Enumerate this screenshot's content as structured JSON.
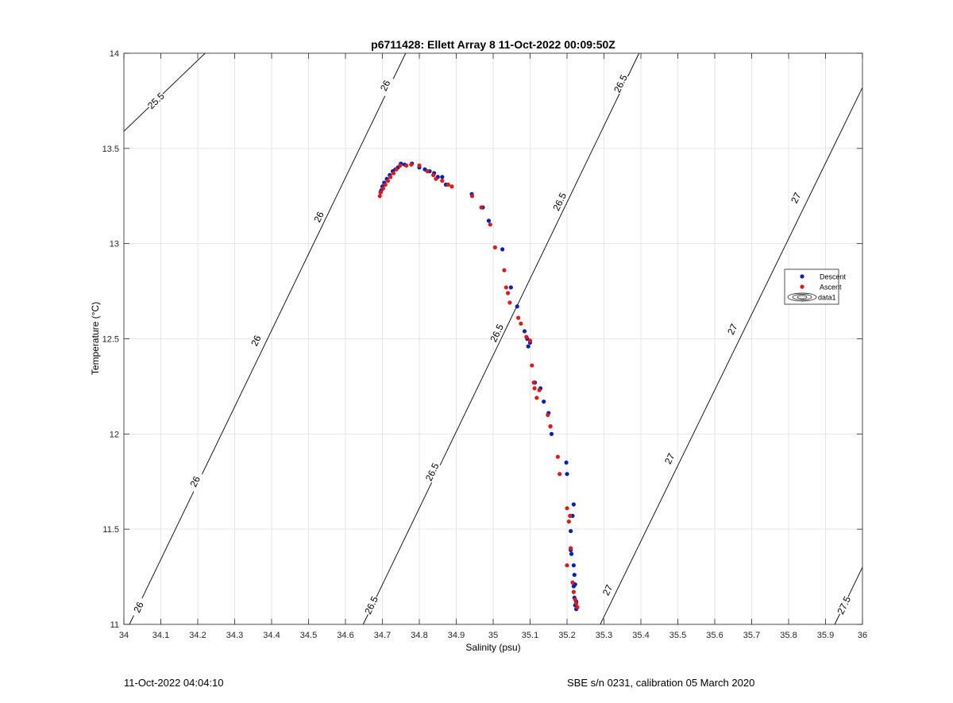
{
  "chart_data": {
    "type": "scatter",
    "title": "p6711428: Ellett Array 8 11-Oct-2022 00:09:50Z",
    "xlabel": "Salinity (psu)",
    "ylabel": "Temperature (°C)",
    "xlim": [
      34,
      36
    ],
    "ylim": [
      11,
      14
    ],
    "xticks": [
      "34",
      "34.1",
      "34.2",
      "34.3",
      "34.4",
      "34.5",
      "34.6",
      "34.7",
      "34.8",
      "34.9",
      "35",
      "35.1",
      "35.2",
      "35.3",
      "35.4",
      "35.5",
      "35.6",
      "35.7",
      "35.8",
      "35.9",
      "36"
    ],
    "yticks": [
      "11",
      "11.5",
      "12",
      "12.5",
      "13",
      "13.5",
      "14"
    ],
    "grid": true,
    "legend_position": "right",
    "legend": [
      "Descent",
      "Ascent",
      "data1"
    ],
    "colors": {
      "descent": "#0a1fb5",
      "ascent": "#d81b1b",
      "contour": "#000000",
      "grid": "#e6e6e6"
    },
    "series": [
      {
        "name": "Descent",
        "x": [
          34.695,
          34.697,
          34.7,
          34.705,
          34.712,
          34.72,
          34.728,
          34.735,
          34.742,
          34.75,
          34.76,
          34.78,
          34.8,
          34.815,
          34.828,
          34.84,
          34.85,
          34.862,
          34.872,
          34.942,
          34.972,
          34.988,
          35.025,
          35.048,
          35.065,
          35.085,
          35.092,
          35.1,
          35.095,
          35.113,
          35.128,
          35.137,
          35.15,
          35.158,
          35.198,
          35.2,
          35.218,
          35.215,
          35.21,
          35.21,
          35.212,
          35.218,
          35.22,
          35.222,
          35.218,
          35.22,
          35.225,
          35.222,
          35.225
        ],
        "y": [
          13.27,
          13.28,
          13.3,
          13.32,
          13.34,
          13.36,
          13.38,
          13.39,
          13.4,
          13.42,
          13.415,
          13.42,
          13.4,
          13.39,
          13.38,
          13.37,
          13.35,
          13.35,
          13.31,
          13.26,
          13.19,
          13.12,
          12.97,
          12.77,
          12.67,
          12.54,
          12.5,
          12.48,
          12.46,
          12.27,
          12.24,
          12.17,
          12.11,
          12.0,
          11.85,
          11.79,
          11.63,
          11.57,
          11.49,
          11.39,
          11.37,
          11.31,
          11.26,
          11.21,
          11.2,
          11.14,
          11.12,
          11.1,
          11.08
        ]
      },
      {
        "name": "Ascent",
        "x": [
          34.693,
          34.696,
          34.702,
          34.708,
          34.715,
          34.722,
          34.73,
          34.738,
          34.748,
          34.765,
          34.778,
          34.8,
          34.822,
          34.838,
          34.845,
          34.862,
          34.878,
          34.888,
          34.943,
          34.968,
          34.992,
          35.005,
          35.03,
          35.035,
          35.04,
          35.045,
          35.068,
          35.075,
          35.09,
          35.1,
          35.105,
          35.11,
          35.112,
          35.118,
          35.125,
          35.148,
          35.155,
          35.155,
          35.175,
          35.18,
          35.2,
          35.208,
          35.205,
          35.21,
          35.2,
          35.215,
          35.218,
          35.222,
          35.225,
          35.228
        ],
        "y": [
          13.25,
          13.27,
          13.29,
          13.31,
          13.33,
          13.35,
          13.37,
          13.39,
          13.41,
          13.41,
          13.415,
          13.41,
          13.38,
          13.36,
          13.34,
          13.33,
          13.31,
          13.3,
          13.25,
          13.19,
          13.1,
          12.98,
          12.86,
          12.77,
          12.74,
          12.69,
          12.61,
          12.58,
          12.51,
          12.49,
          12.36,
          12.27,
          12.24,
          12.19,
          12.23,
          12.1,
          12.04,
          12.04,
          11.88,
          11.79,
          11.61,
          11.57,
          11.54,
          11.4,
          11.31,
          11.22,
          11.17,
          11.13,
          11.11,
          11.09
        ]
      }
    ],
    "contours": [
      {
        "level": "25.5",
        "line": [
          [
            34.0,
            13.59
          ],
          [
            34.22,
            14.0
          ]
        ],
        "labels": [
          {
            "text": "25.5",
            "at": [
              34.087,
              13.75
            ]
          }
        ]
      },
      {
        "level": "26",
        "line": [
          [
            34.015,
            11.0
          ],
          [
            34.763,
            14.0
          ]
        ],
        "labels": [
          {
            "text": "26",
            "at": [
              34.04,
              11.09
            ]
          },
          {
            "text": "26",
            "at": [
              34.193,
              11.75
            ]
          },
          {
            "text": "26",
            "at": [
              34.358,
              12.49
            ]
          },
          {
            "text": "26",
            "at": [
              34.528,
              13.14
            ]
          },
          {
            "text": "26",
            "at": [
              34.708,
              13.83
            ]
          }
        ]
      },
      {
        "level": "26.5",
        "line": [
          [
            34.648,
            11.0
          ],
          [
            35.395,
            14.0
          ]
        ],
        "labels": [
          {
            "text": "26.5",
            "at": [
              34.67,
              11.1
            ]
          },
          {
            "text": "26.5",
            "at": [
              34.835,
              11.8
            ]
          },
          {
            "text": "26.5",
            "at": [
              35.01,
              12.53
            ]
          },
          {
            "text": "26.5",
            "at": [
              35.18,
              13.22
            ]
          },
          {
            "text": "26.5",
            "at": [
              35.345,
              13.84
            ]
          }
        ]
      },
      {
        "level": "27",
        "line": [
          [
            35.29,
            11.0
          ],
          [
            36.0,
            13.82
          ]
        ],
        "labels": [
          {
            "text": "27",
            "at": [
              35.31,
              11.18
            ]
          },
          {
            "text": "27",
            "at": [
              35.478,
              11.87
            ]
          },
          {
            "text": "27",
            "at": [
              35.648,
              12.55
            ]
          },
          {
            "text": "27",
            "at": [
              35.82,
              13.24
            ]
          }
        ]
      },
      {
        "level": "27.5",
        "line": [
          [
            35.925,
            11.0
          ],
          [
            36.0,
            11.3
          ]
        ],
        "labels": [
          {
            "text": "27.5",
            "at": [
              35.95,
              11.1
            ]
          }
        ]
      }
    ]
  },
  "footer": {
    "timestamp": "11-Oct-2022 04:04:10",
    "instrument": "SBE s/n 0231, calibration 05 March 2020"
  }
}
